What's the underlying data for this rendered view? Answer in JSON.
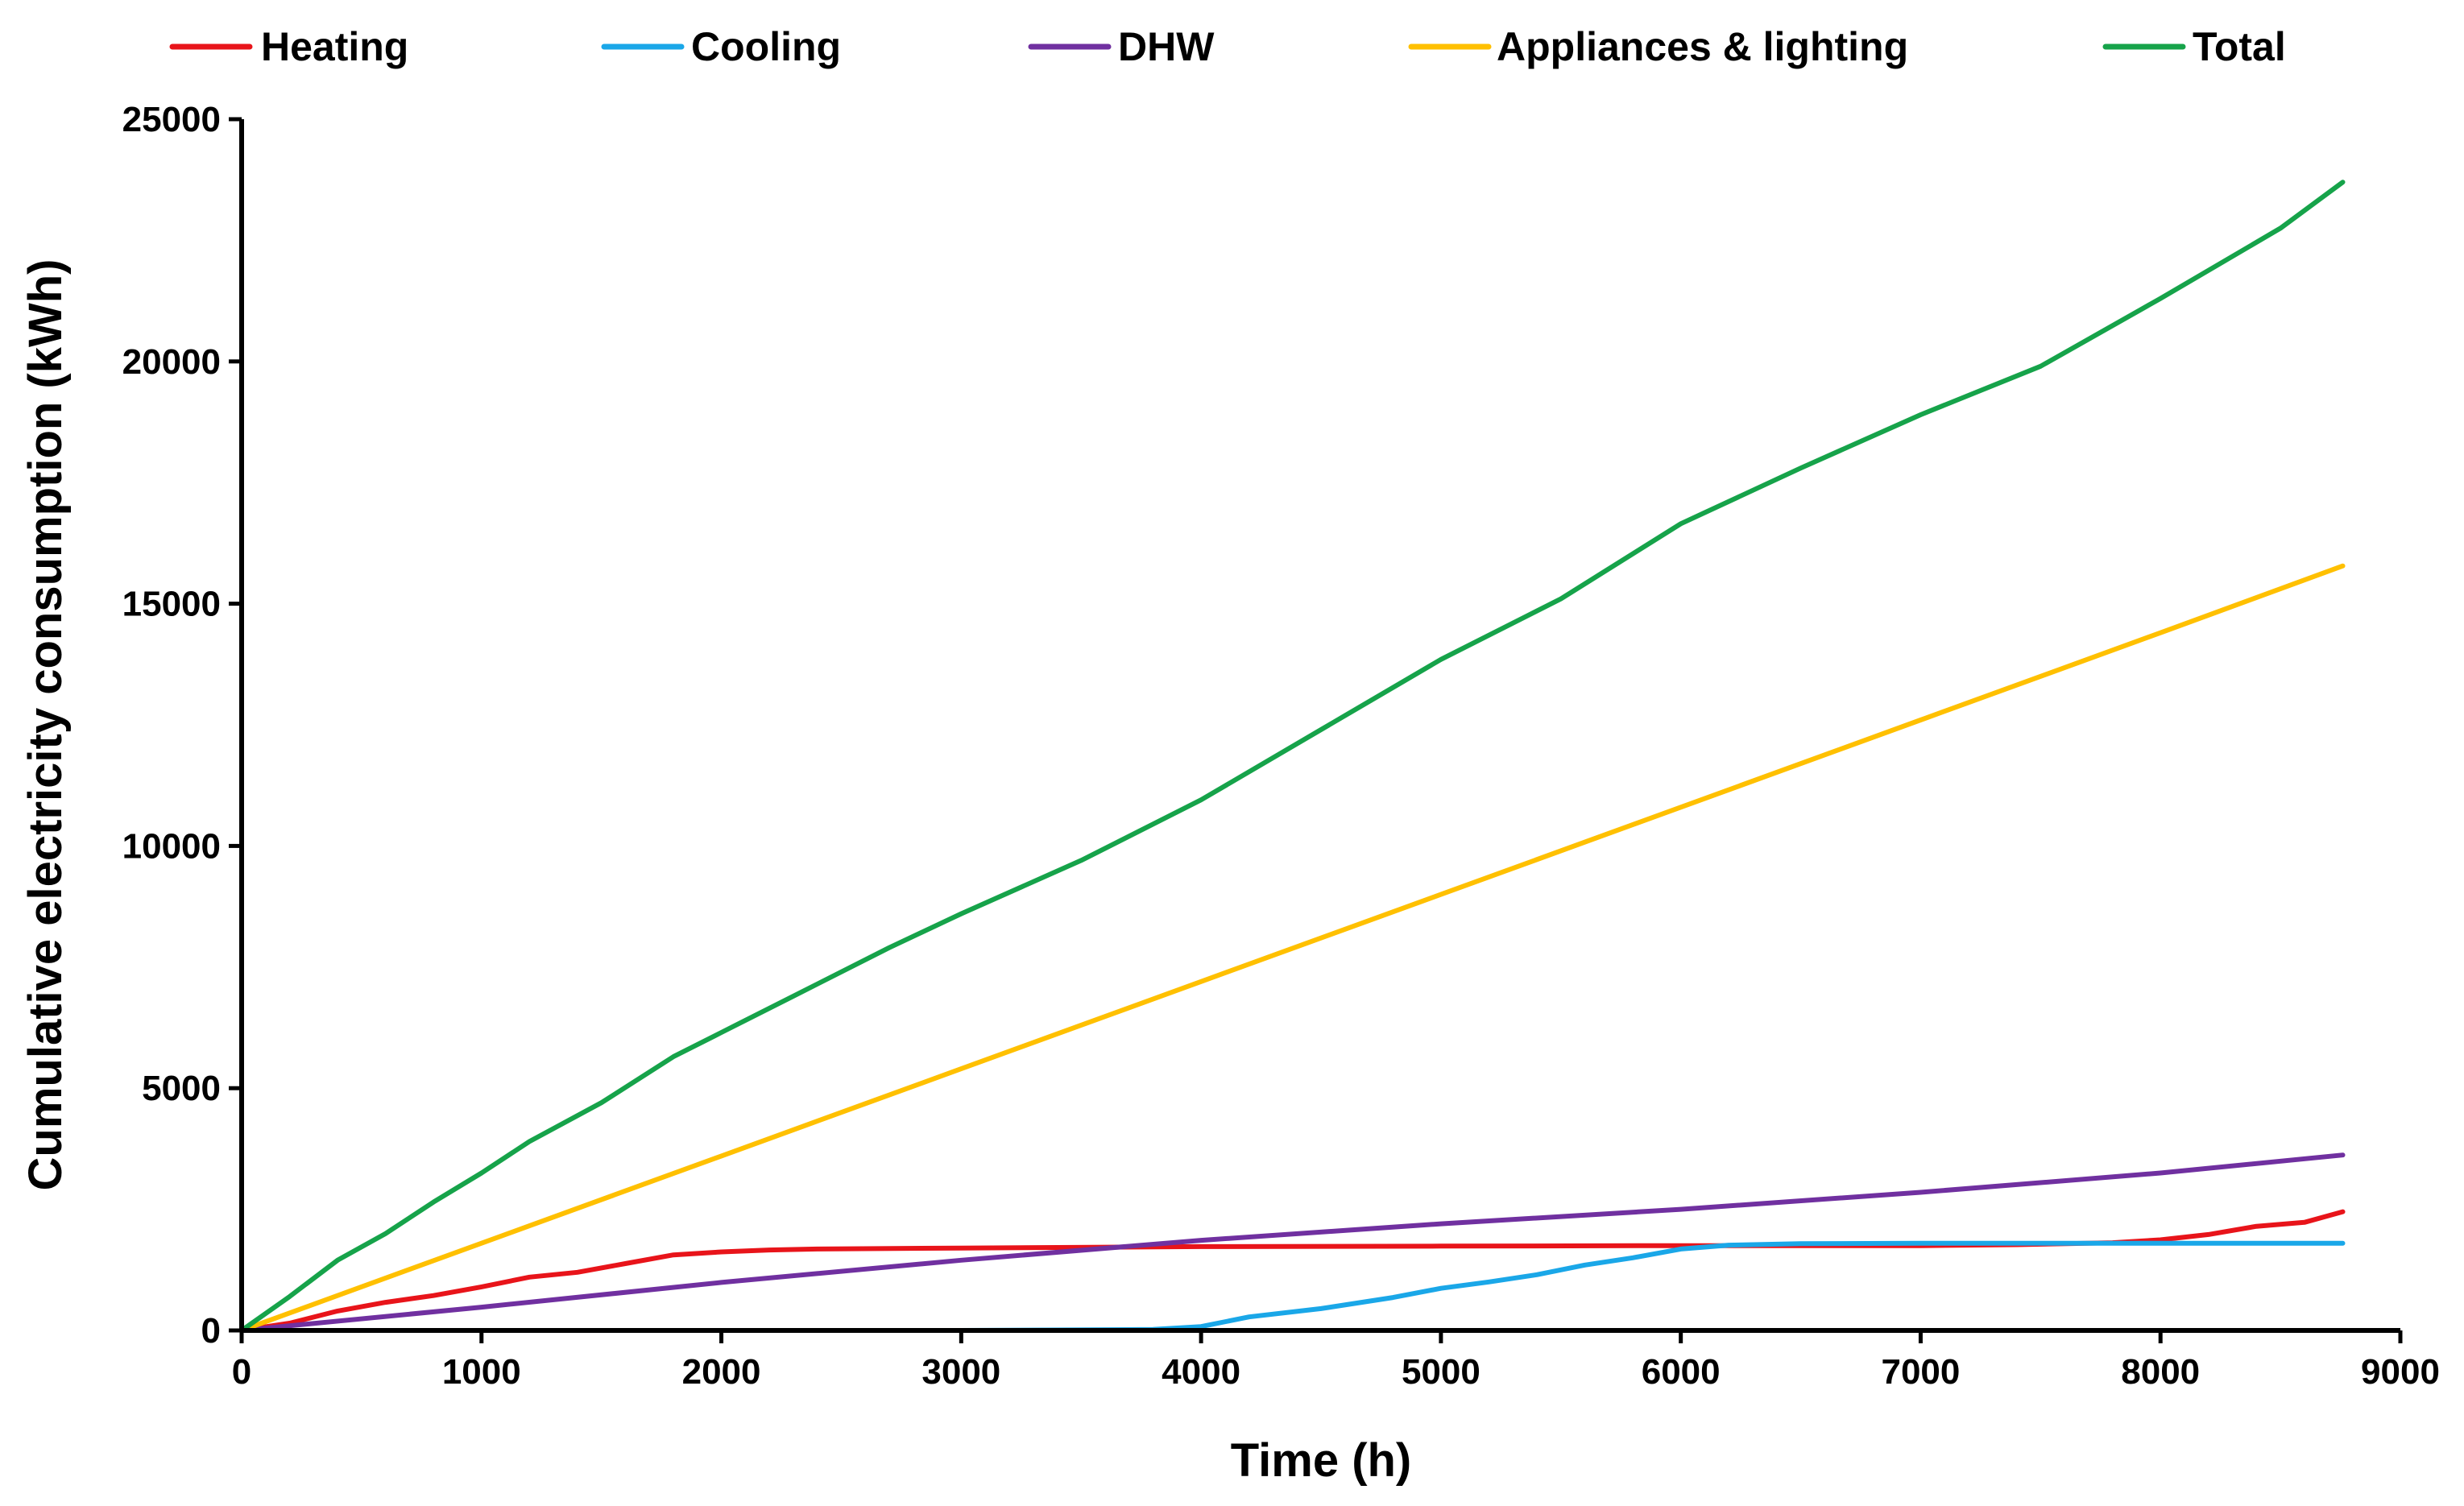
{
  "chart_data": {
    "type": "line",
    "title": "",
    "xlabel": "Time (h)",
    "ylabel": "Cumulative electricity consumption (kWh)",
    "xlim": [
      0,
      9000
    ],
    "ylim": [
      0,
      25000
    ],
    "xticks": [
      0,
      1000,
      2000,
      3000,
      4000,
      5000,
      6000,
      7000,
      8000,
      9000
    ],
    "yticks": [
      0,
      5000,
      10000,
      15000,
      20000,
      25000
    ],
    "xtick_labels": [
      "0",
      "1000",
      "2000",
      "3000",
      "4000",
      "5000",
      "6000",
      "7000",
      "8000",
      "9000"
    ],
    "ytick_labels": [
      "0",
      "5000",
      "10000",
      "15000",
      "20000",
      "25000"
    ],
    "grid": false,
    "legend_position": "top",
    "series": [
      {
        "name": "Heating",
        "color": "#e8141a",
        "x": [
          0,
          200,
          400,
          600,
          800,
          1000,
          1200,
          1400,
          1600,
          1800,
          2000,
          2200,
          2400,
          3000,
          4000,
          5000,
          6000,
          7000,
          7400,
          7800,
          8000,
          8200,
          8400,
          8600,
          8760
        ],
        "y": [
          0,
          150,
          400,
          580,
          720,
          900,
          1100,
          1200,
          1380,
          1560,
          1620,
          1660,
          1680,
          1700,
          1730,
          1740,
          1750,
          1750,
          1770,
          1810,
          1870,
          1980,
          2150,
          2230,
          2450
        ]
      },
      {
        "name": "Cooling",
        "color": "#1aa7e8",
        "x": [
          0,
          3000,
          3800,
          4000,
          4200,
          4500,
          4800,
          5000,
          5200,
          5400,
          5600,
          5800,
          6000,
          6200,
          6500,
          7000,
          8000,
          8760
        ],
        "y": [
          0,
          0,
          20,
          80,
          280,
          450,
          680,
          870,
          1000,
          1150,
          1350,
          1500,
          1680,
          1760,
          1790,
          1800,
          1800,
          1800
        ]
      },
      {
        "name": "DHW",
        "color": "#7030a0",
        "x": [
          0,
          1000,
          2000,
          3000,
          4000,
          5000,
          6000,
          7000,
          8000,
          8760
        ],
        "y": [
          0,
          480,
          990,
          1450,
          1860,
          2200,
          2500,
          2850,
          3250,
          3620
        ]
      },
      {
        "name": "Appliances & lighting",
        "color": "#ffc000",
        "x": [
          0,
          1000,
          2000,
          3000,
          4000,
          5000,
          6000,
          7000,
          8000,
          8760
        ],
        "y": [
          0,
          1800,
          3600,
          5400,
          7200,
          9000,
          10800,
          12600,
          14400,
          15780
        ]
      },
      {
        "name": "Total",
        "color": "#16a34a",
        "x": [
          0,
          200,
          400,
          600,
          800,
          1000,
          1200,
          1500,
          1800,
          2000,
          2300,
          2700,
          3000,
          3500,
          4000,
          4500,
          5000,
          5500,
          6000,
          6500,
          7000,
          7500,
          8000,
          8500,
          8760
        ],
        "y": [
          0,
          700,
          1450,
          2000,
          2650,
          3250,
          3900,
          4700,
          5650,
          6150,
          6900,
          7900,
          8600,
          9700,
          10950,
          12400,
          13850,
          15100,
          16650,
          17800,
          18900,
          19900,
          21300,
          22750,
          23700
        ]
      }
    ]
  }
}
